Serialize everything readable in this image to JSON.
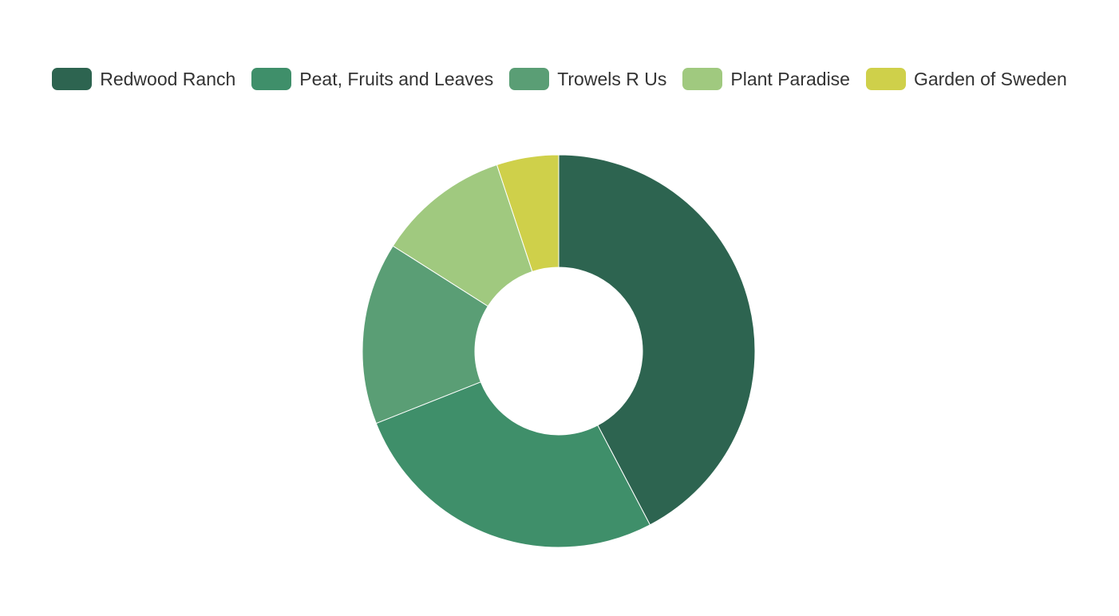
{
  "chart_data": {
    "type": "pie",
    "variant": "donut",
    "categories": [
      "Redwood Ranch",
      "Peat, Fruits and Leaves",
      "Trowels R Us",
      "Plant Paradise",
      "Garden of Sweden"
    ],
    "values": [
      42.3,
      26.7,
      15.0,
      10.9,
      5.1
    ],
    "colors": [
      "#2d6450",
      "#3f8f6a",
      "#5a9e75",
      "#a0c97f",
      "#cfd04a"
    ],
    "legend_position": "top",
    "start_angle": "top, clockwise"
  }
}
